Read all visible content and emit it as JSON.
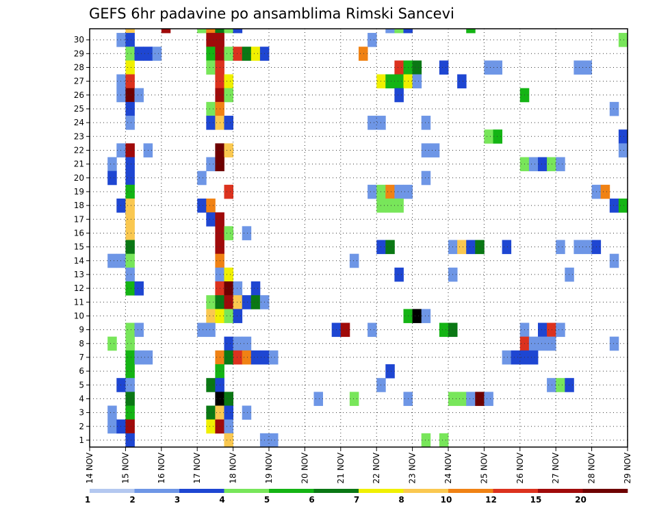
{
  "chart_data": {
    "type": "heatmap",
    "title": "GEFS 6hr padavine po ansamblima Rimski Sancevi",
    "x_ticks": [
      "14 NOV",
      "15 NOV",
      "16 NOV",
      "17 NOV",
      "18 NOV",
      "19 NOV",
      "20 NOV",
      "21 NOV",
      "22 NOV",
      "23 NOV",
      "24 NOV",
      "25 NOV",
      "26 NOV",
      "27 NOV",
      "28 NOV",
      "29 NOV"
    ],
    "y_ticks": [
      "1",
      "2",
      "3",
      "4",
      "5",
      "6",
      "7",
      "8",
      "9",
      "10",
      "11",
      "12",
      "13",
      "14",
      "15",
      "16",
      "17",
      "18",
      "19",
      "20",
      "21",
      "22",
      "23",
      "24",
      "25",
      "26",
      "27",
      "28",
      "29",
      "30"
    ],
    "xlim": [
      0,
      60
    ],
    "ylim": [
      0,
      30
    ],
    "grid": true,
    "colorbar": {
      "labels": [
        "1",
        "2",
        "3",
        "4",
        "5",
        "6",
        "7",
        "8",
        "10",
        "12",
        "15",
        "20"
      ],
      "colors": [
        "#b4c8f0",
        "#6e96e6",
        "#1e46d2",
        "#78e65a",
        "#14b414",
        "#0a7814",
        "#f0f000",
        "#fac850",
        "#f08214",
        "#dc321e",
        "#a00a0a",
        "#6e0000"
      ]
    },
    "cells": [
      [
        4,
        30,
        7
      ],
      [
        8,
        30,
        10
      ],
      [
        12,
        30,
        3
      ],
      [
        13,
        30,
        8
      ],
      [
        14,
        30,
        5
      ],
      [
        15,
        30,
        3
      ],
      [
        16,
        30,
        2
      ],
      [
        33,
        30,
        1
      ],
      [
        34,
        30,
        3
      ],
      [
        35,
        30,
        2
      ],
      [
        42,
        30,
        4
      ],
      [
        3,
        29,
        1
      ],
      [
        4,
        29,
        2
      ],
      [
        13,
        29,
        10
      ],
      [
        14,
        29,
        10
      ],
      [
        31,
        29,
        1
      ],
      [
        59,
        29,
        3
      ],
      [
        4,
        28,
        3
      ],
      [
        5,
        28,
        2
      ],
      [
        6,
        28,
        2
      ],
      [
        7,
        28,
        1
      ],
      [
        13,
        28,
        4
      ],
      [
        14,
        28,
        10
      ],
      [
        15,
        28,
        3
      ],
      [
        16,
        28,
        9
      ],
      [
        17,
        28,
        5
      ],
      [
        18,
        28,
        6
      ],
      [
        19,
        28,
        2
      ],
      [
        30,
        28,
        8
      ],
      [
        4,
        27,
        6
      ],
      [
        13,
        27,
        3
      ],
      [
        14,
        27,
        9
      ],
      [
        34,
        27,
        9
      ],
      [
        35,
        27,
        4
      ],
      [
        36,
        27,
        5
      ],
      [
        39,
        27,
        2
      ],
      [
        44,
        27,
        1
      ],
      [
        45,
        27,
        1
      ],
      [
        54,
        27,
        1
      ],
      [
        55,
        27,
        1
      ],
      [
        3,
        26,
        1
      ],
      [
        4,
        26,
        9
      ],
      [
        14,
        26,
        9
      ],
      [
        15,
        26,
        6
      ],
      [
        32,
        26,
        6
      ],
      [
        33,
        26,
        4
      ],
      [
        34,
        26,
        4
      ],
      [
        35,
        26,
        6
      ],
      [
        36,
        26,
        1
      ],
      [
        41,
        26,
        2
      ],
      [
        3,
        25,
        1
      ],
      [
        4,
        25,
        11
      ],
      [
        5,
        25,
        1
      ],
      [
        14,
        25,
        10
      ],
      [
        15,
        25,
        3
      ],
      [
        34,
        25,
        2
      ],
      [
        48,
        25,
        4
      ],
      [
        4,
        24,
        2
      ],
      [
        13,
        24,
        3
      ],
      [
        14,
        24,
        8
      ],
      [
        58,
        24,
        1
      ],
      [
        4,
        23,
        1
      ],
      [
        13,
        23,
        2
      ],
      [
        14,
        23,
        7
      ],
      [
        15,
        23,
        2
      ],
      [
        31,
        23,
        1
      ],
      [
        32,
        23,
        1
      ],
      [
        37,
        23,
        1
      ],
      [
        44,
        22,
        3
      ],
      [
        45,
        22,
        4
      ],
      [
        59,
        22,
        2
      ],
      [
        3,
        21,
        1
      ],
      [
        4,
        21,
        10
      ],
      [
        6,
        21,
        1
      ],
      [
        14,
        21,
        11
      ],
      [
        15,
        21,
        7
      ],
      [
        37,
        21,
        1
      ],
      [
        38,
        21,
        1
      ],
      [
        59,
        21,
        1
      ],
      [
        2,
        20,
        1
      ],
      [
        4,
        20,
        2
      ],
      [
        13,
        20,
        1
      ],
      [
        14,
        20,
        11
      ],
      [
        48,
        20,
        3
      ],
      [
        49,
        20,
        1
      ],
      [
        50,
        20,
        2
      ],
      [
        51,
        20,
        3
      ],
      [
        52,
        20,
        1
      ],
      [
        2,
        19,
        2
      ],
      [
        4,
        19,
        2
      ],
      [
        12,
        19,
        1
      ],
      [
        37,
        19,
        1
      ],
      [
        4,
        18,
        4
      ],
      [
        15,
        18,
        9
      ],
      [
        31,
        18,
        1
      ],
      [
        32,
        18,
        3
      ],
      [
        33,
        18,
        8
      ],
      [
        34,
        18,
        1
      ],
      [
        35,
        18,
        1
      ],
      [
        56,
        18,
        1
      ],
      [
        57,
        18,
        8
      ],
      [
        3,
        17,
        2
      ],
      [
        4,
        17,
        7
      ],
      [
        12,
        17,
        2
      ],
      [
        13,
        17,
        8
      ],
      [
        32,
        17,
        3
      ],
      [
        33,
        17,
        3
      ],
      [
        34,
        17,
        3
      ],
      [
        58,
        17,
        2
      ],
      [
        59,
        17,
        4
      ],
      [
        4,
        16,
        7
      ],
      [
        13,
        16,
        2
      ],
      [
        14,
        16,
        10
      ],
      [
        4,
        15,
        7
      ],
      [
        14,
        15,
        10
      ],
      [
        15,
        15,
        3
      ],
      [
        17,
        15,
        1
      ],
      [
        4,
        14,
        5
      ],
      [
        14,
        14,
        10
      ],
      [
        32,
        14,
        2
      ],
      [
        33,
        14,
        5
      ],
      [
        40,
        14,
        1
      ],
      [
        41,
        14,
        7
      ],
      [
        42,
        14,
        2
      ],
      [
        43,
        14,
        5
      ],
      [
        46,
        14,
        2
      ],
      [
        52,
        14,
        1
      ],
      [
        54,
        14,
        1
      ],
      [
        55,
        14,
        1
      ],
      [
        56,
        14,
        2
      ],
      [
        2,
        13,
        1
      ],
      [
        3,
        13,
        1
      ],
      [
        4,
        13,
        3
      ],
      [
        14,
        13,
        8
      ],
      [
        29,
        13,
        1
      ],
      [
        58,
        13,
        1
      ],
      [
        4,
        12,
        1
      ],
      [
        14,
        12,
        1
      ],
      [
        15,
        12,
        6
      ],
      [
        34,
        12,
        2
      ],
      [
        40,
        12,
        1
      ],
      [
        53,
        12,
        1
      ],
      [
        4,
        11,
        4
      ],
      [
        5,
        11,
        2
      ],
      [
        14,
        11,
        9
      ],
      [
        15,
        11,
        11
      ],
      [
        16,
        11,
        1
      ],
      [
        18,
        11,
        2
      ],
      [
        13,
        10,
        3
      ],
      [
        14,
        10,
        5
      ],
      [
        15,
        10,
        10
      ],
      [
        16,
        10,
        7
      ],
      [
        17,
        10,
        2
      ],
      [
        18,
        10,
        5
      ],
      [
        19,
        10,
        1
      ],
      [
        13,
        9,
        7
      ],
      [
        14,
        9,
        6
      ],
      [
        15,
        9,
        3
      ],
      [
        16,
        9,
        2
      ],
      [
        35,
        9,
        4
      ],
      [
        36,
        9,
        12
      ],
      [
        37,
        9,
        1
      ],
      [
        4,
        8,
        3
      ],
      [
        5,
        8,
        1
      ],
      [
        12,
        8,
        1
      ],
      [
        13,
        8,
        1
      ],
      [
        27,
        8,
        2
      ],
      [
        28,
        8,
        10
      ],
      [
        31,
        8,
        1
      ],
      [
        39,
        8,
        4
      ],
      [
        40,
        8,
        5
      ],
      [
        48,
        8,
        1
      ],
      [
        50,
        8,
        2
      ],
      [
        51,
        8,
        9
      ],
      [
        52,
        8,
        1
      ],
      [
        2,
        7,
        3
      ],
      [
        4,
        7,
        3
      ],
      [
        15,
        7,
        2
      ],
      [
        16,
        7,
        1
      ],
      [
        17,
        7,
        1
      ],
      [
        48,
        7,
        9
      ],
      [
        49,
        7,
        1
      ],
      [
        50,
        7,
        1
      ],
      [
        51,
        7,
        1
      ],
      [
        58,
        7,
        1
      ],
      [
        4,
        6,
        4
      ],
      [
        5,
        6,
        1
      ],
      [
        6,
        6,
        1
      ],
      [
        14,
        6,
        8
      ],
      [
        15,
        6,
        5
      ],
      [
        16,
        6,
        9
      ],
      [
        17,
        6,
        8
      ],
      [
        18,
        6,
        2
      ],
      [
        19,
        6,
        2
      ],
      [
        20,
        6,
        1
      ],
      [
        46,
        6,
        1
      ],
      [
        47,
        6,
        2
      ],
      [
        48,
        6,
        2
      ],
      [
        49,
        6,
        2
      ],
      [
        4,
        5,
        4
      ],
      [
        14,
        5,
        4
      ],
      [
        33,
        5,
        2
      ],
      [
        3,
        4,
        2
      ],
      [
        4,
        4,
        1
      ],
      [
        13,
        4,
        5
      ],
      [
        14,
        4,
        2
      ],
      [
        32,
        4,
        1
      ],
      [
        51,
        4,
        1
      ],
      [
        52,
        4,
        3
      ],
      [
        53,
        4,
        2
      ],
      [
        4,
        3,
        5
      ],
      [
        14,
        3,
        12
      ],
      [
        15,
        3,
        5
      ],
      [
        25,
        3,
        1
      ],
      [
        29,
        3,
        3
      ],
      [
        35,
        3,
        1
      ],
      [
        40,
        3,
        3
      ],
      [
        41,
        3,
        3
      ],
      [
        42,
        3,
        1
      ],
      [
        43,
        3,
        11
      ],
      [
        44,
        3,
        1
      ],
      [
        2,
        2,
        1
      ],
      [
        4,
        2,
        4
      ],
      [
        13,
        2,
        5
      ],
      [
        14,
        2,
        7
      ],
      [
        15,
        2,
        2
      ],
      [
        17,
        2,
        1
      ],
      [
        2,
        1,
        1
      ],
      [
        3,
        1,
        2
      ],
      [
        4,
        1,
        10
      ],
      [
        13,
        1,
        6
      ],
      [
        14,
        1,
        10
      ],
      [
        15,
        1,
        1
      ],
      [
        4,
        0,
        2
      ],
      [
        15,
        0,
        7
      ],
      [
        19,
        0,
        1
      ],
      [
        20,
        0,
        1
      ],
      [
        37,
        0,
        3
      ],
      [
        39,
        0,
        3
      ]
    ]
  }
}
